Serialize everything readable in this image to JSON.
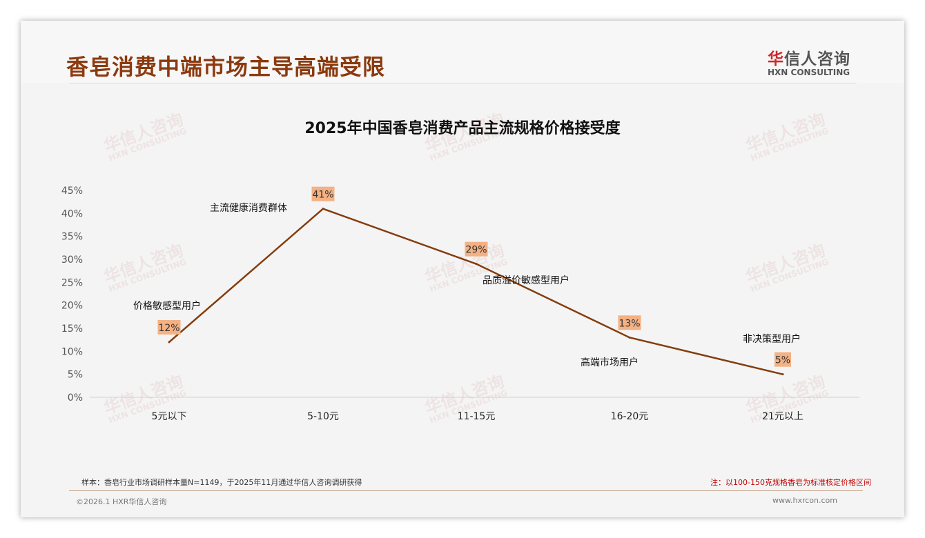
{
  "header": {
    "title": "香皂消费中端市场主导高端受限",
    "logo_cn_accent": "华",
    "logo_cn": "信人咨询",
    "logo_en": "HXN CONSULTING"
  },
  "watermark": {
    "cn": "华信人咨询",
    "en": "HXN CONSULTING"
  },
  "chart_data": {
    "type": "line",
    "title": "2025年中国香皂消费产品主流规格价格接受度",
    "categories": [
      "5元以下",
      "5-10元",
      "11-15元",
      "16-20元",
      "21元以上"
    ],
    "values": [
      12,
      41,
      29,
      13,
      5
    ],
    "data_labels": [
      "12%",
      "41%",
      "29%",
      "13%",
      "5%"
    ],
    "annotations": [
      "价格敏感型用户",
      "主流健康消费群体",
      "品质溢价敏感型用户",
      "高端市场用户",
      "非决策型用户"
    ],
    "ylim": [
      0,
      45
    ],
    "yticks": [
      "0%",
      "5%",
      "10%",
      "15%",
      "20%",
      "25%",
      "30%",
      "35%",
      "40%",
      "45%"
    ],
    "line_color": "#843c0c",
    "label_bg": "#f4b183",
    "grid": false
  },
  "footer": {
    "sample": "样本：香皂行业市场调研样本量N=1149，于2025年11月通过华信人咨询调研获得",
    "note": "注：以100-150克规格香皂为标准核定价格区间",
    "copyright": "©2026.1 HXR华信人咨询",
    "website": "www.hxrcon.com"
  }
}
